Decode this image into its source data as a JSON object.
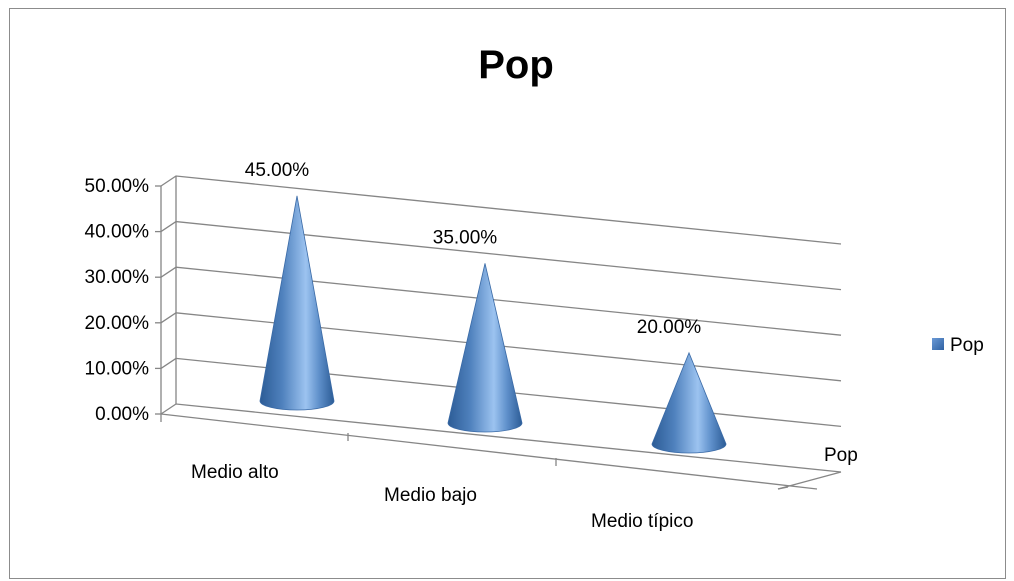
{
  "chart_data": {
    "type": "bar",
    "subtype": "3d-cone",
    "title": "Pop",
    "categories": [
      "Medio alto",
      "Medio bajo",
      "Medio típico"
    ],
    "series": [
      {
        "name": "Pop",
        "values": [
          0.45,
          0.35,
          0.2
        ]
      }
    ],
    "data_labels": [
      "45.00%",
      "35.00%",
      "20.00%"
    ],
    "y_tick_labels": [
      "0.00%",
      "10.00%",
      "20.00%",
      "30.00%",
      "40.00%",
      "50.00%"
    ],
    "ylim": [
      0,
      0.5
    ],
    "depth_axis_label": "Pop",
    "legend": {
      "position": "right",
      "entries": [
        "Pop"
      ]
    },
    "grid": true,
    "colors": {
      "cone": "#4f81bd",
      "cone_light": "#9cc3f0",
      "cone_dark": "#2c5c96",
      "grid": "#868686"
    }
  }
}
